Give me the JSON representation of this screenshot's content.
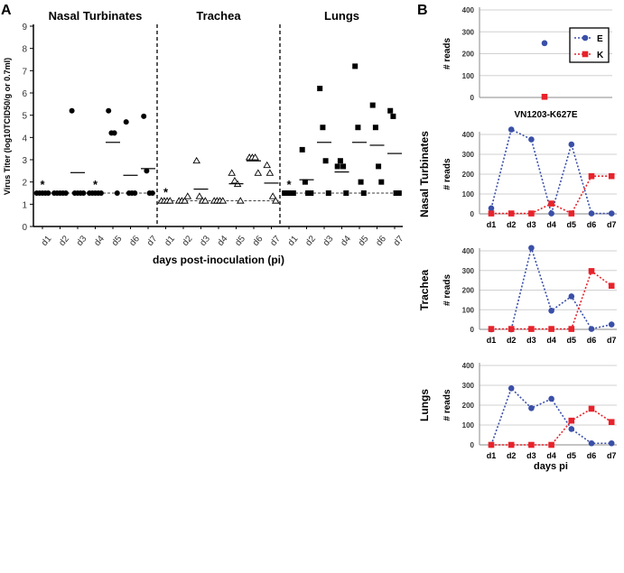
{
  "panel_labels": [
    "A",
    "B"
  ],
  "chart_data": [
    {
      "type": "scatter",
      "ylabel": "Virus Titer (log10TCID50/g or 0.7ml)",
      "xlabel": "days post-inoculation (pi)",
      "ylim": [
        0,
        9
      ],
      "yticks": [
        "0",
        "1",
        "2",
        "3",
        "4",
        "5",
        "6",
        "7",
        "8",
        "9"
      ],
      "asterisk": "*",
      "groups": [
        {
          "name": "Nasal Turbinates",
          "marker": "circle",
          "limit": 1.5,
          "days": [
            {
              "day": "d1",
              "values": [
                1.5,
                1.5,
                1.5,
                1.5,
                1.5
              ],
              "mean": null,
              "star": true
            },
            {
              "day": "d2",
              "values": [
                1.5,
                1.5,
                1.5,
                1.5,
                1.5
              ],
              "mean": null,
              "star": false
            },
            {
              "day": "d3",
              "values": [
                5.2,
                1.5,
                1.5,
                1.5,
                1.5
              ],
              "mean": 2.42,
              "star": false
            },
            {
              "day": "d4",
              "values": [
                1.5,
                1.5,
                1.5,
                1.5,
                1.5
              ],
              "mean": null,
              "star": true
            },
            {
              "day": "d5",
              "values": [
                5.2,
                4.2,
                4.2,
                1.5
              ],
              "mean": 3.78,
              "star": false
            },
            {
              "day": "d6",
              "values": [
                4.7,
                1.5,
                1.5,
                1.5
              ],
              "mean": 2.3,
              "star": false
            },
            {
              "day": "d7",
              "values": [
                4.95,
                2.5,
                1.5,
                1.5
              ],
              "mean": 2.6,
              "star": false
            }
          ]
        },
        {
          "name": "Trachea",
          "marker": "triangle",
          "limit": 1.15,
          "days": [
            {
              "day": "d1",
              "values": [
                1.15,
                1.15,
                1.15,
                1.15
              ],
              "mean": null,
              "star": true
            },
            {
              "day": "d2",
              "values": [
                1.15,
                1.15,
                1.15,
                1.35
              ],
              "mean": null,
              "star": false
            },
            {
              "day": "d3",
              "values": [
                2.95,
                1.35,
                1.15,
                1.15
              ],
              "mean": 1.68,
              "star": false
            },
            {
              "day": "d4",
              "values": [
                1.15,
                1.15,
                1.15,
                1.15
              ],
              "mean": null,
              "star": false
            },
            {
              "day": "d5",
              "values": [
                2.4,
                2.05,
                1.9,
                1.15
              ],
              "mean": 1.92,
              "star": false
            },
            {
              "day": "d6",
              "values": [
                3.1,
                3.1,
                3.1,
                2.4
              ],
              "mean": 2.95,
              "star": false
            },
            {
              "day": "d7",
              "values": [
                2.75,
                2.4,
                1.35,
                1.15
              ],
              "mean": 1.95,
              "star": false
            }
          ]
        },
        {
          "name": "Lungs",
          "marker": "square",
          "limit": 1.5,
          "days": [
            {
              "day": "d1",
              "values": [
                1.5,
                1.5,
                1.5,
                1.5
              ],
              "mean": null,
              "star": true
            },
            {
              "day": "d2",
              "values": [
                3.45,
                2.0,
                1.5,
                1.5
              ],
              "mean": 2.1,
              "star": false
            },
            {
              "day": "d3",
              "values": [
                6.2,
                4.45,
                2.95,
                1.5
              ],
              "mean": 3.78,
              "star": false
            },
            {
              "day": "d4",
              "values": [
                2.7,
                2.95,
                2.7,
                1.5
              ],
              "mean": 2.45,
              "star": false
            },
            {
              "day": "d5",
              "values": [
                7.2,
                4.45,
                2.0,
                1.5
              ],
              "mean": 3.78,
              "star": false
            },
            {
              "day": "d6",
              "values": [
                5.45,
                4.45,
                2.7,
                2.0
              ],
              "mean": 3.65,
              "star": false
            },
            {
              "day": "d7",
              "values": [
                5.2,
                4.95,
                1.5,
                1.5
              ],
              "mean": 3.28,
              "star": false
            }
          ]
        }
      ]
    },
    {
      "type": "line",
      "legend": {
        "position": "top-right",
        "entries": [
          "E",
          "K"
        ]
      },
      "colors": {
        "E": "#3a4fa8",
        "K": "#e8222a"
      },
      "ylim": [
        0,
        400
      ],
      "yticks": [
        "0",
        "100",
        "200",
        "300",
        "400"
      ],
      "ylabel": "# reads",
      "xlabel": "days pi",
      "panels": [
        {
          "title": "",
          "categories": [
            "VN1203-K627E"
          ],
          "E": [
            248
          ],
          "K": [
            3
          ]
        },
        {
          "title": "Nasal Turbinates",
          "categories": [
            "d1",
            "d2",
            "d3",
            "d4",
            "d5",
            "d6",
            "d7"
          ],
          "E": [
            28,
            425,
            375,
            2,
            350,
            2,
            2
          ],
          "K": [
            2,
            2,
            2,
            52,
            2,
            190,
            190
          ]
        },
        {
          "title": "Trachea",
          "categories": [
            "d1",
            "d2",
            "d3",
            "d4",
            "d5",
            "d6",
            "d7"
          ],
          "E": [
            0,
            0,
            415,
            95,
            168,
            2,
            25
          ],
          "K": [
            2,
            2,
            2,
            2,
            2,
            297,
            222
          ]
        },
        {
          "title": "Lungs",
          "categories": [
            "d1",
            "d2",
            "d3",
            "d4",
            "d5",
            "d6",
            "d7"
          ],
          "E": [
            0,
            285,
            185,
            232,
            80,
            8,
            8
          ],
          "K": [
            0,
            0,
            0,
            0,
            122,
            182,
            115
          ]
        }
      ]
    }
  ]
}
